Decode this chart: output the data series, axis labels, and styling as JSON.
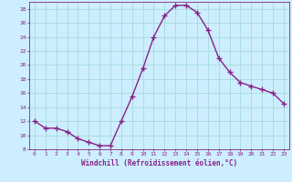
{
  "x": [
    0,
    1,
    2,
    3,
    4,
    5,
    6,
    7,
    8,
    9,
    10,
    11,
    12,
    13,
    14,
    15,
    16,
    17,
    18,
    19,
    20,
    21,
    22,
    23
  ],
  "y": [
    12,
    11,
    11,
    10.5,
    9.5,
    9,
    8.5,
    8.5,
    12,
    15.5,
    19.5,
    24,
    27,
    28.5,
    28.5,
    27.5,
    25,
    21,
    19,
    17.5,
    17,
    16.5,
    16,
    14.5
  ],
  "line_color": "#882288",
  "marker": "+",
  "marker_size": 4,
  "bg_color": "#cceeff",
  "grid_color": "#aadddd",
  "xlabel": "Windchill (Refroidissement éolien,°C)",
  "xlabel_color": "#882288",
  "tick_color": "#882288",
  "ylim": [
    8,
    29
  ],
  "yticks": [
    8,
    10,
    12,
    14,
    16,
    18,
    20,
    22,
    24,
    26,
    28
  ],
  "xlim": [
    -0.5,
    23.5
  ]
}
